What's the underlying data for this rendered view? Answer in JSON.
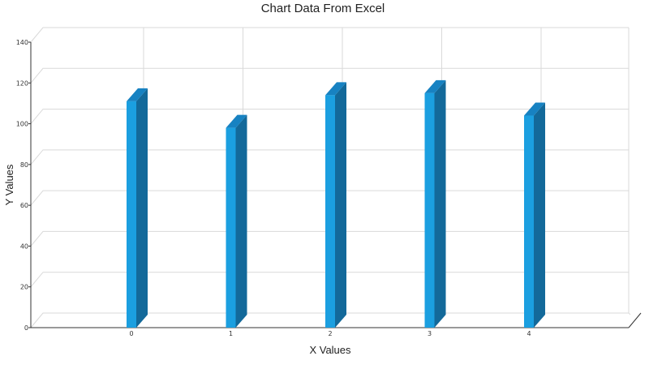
{
  "chart_data": {
    "type": "bar",
    "title": "Chart Data From Excel",
    "xlabel": "X Values",
    "ylabel": "Y Values",
    "categories": [
      "0",
      "1",
      "2",
      "3",
      "4"
    ],
    "values": [
      111,
      98,
      114,
      115,
      104
    ],
    "ylim": [
      0,
      140
    ],
    "yticks": [
      0,
      20,
      40,
      60,
      80,
      100,
      120,
      140
    ],
    "grid": true,
    "style": "3d-column",
    "colors": {
      "bar_front": "#1b9fe0",
      "bar_side": "#13699a",
      "bar_top": "#1782c2"
    }
  }
}
